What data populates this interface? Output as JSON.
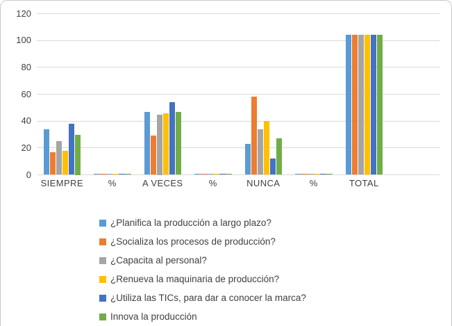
{
  "chart_data": {
    "type": "bar",
    "title": "",
    "xlabel": "",
    "ylabel": "",
    "categories": [
      "SIEMPRE",
      "%",
      "A VECES",
      "%",
      "NUNCA",
      "%",
      "TOTAL"
    ],
    "series": [
      {
        "name": "¿Planifica la producción a largo plazo?",
        "color": "#5B9BD5",
        "values": [
          34,
          1,
          47,
          1,
          23,
          1,
          104
        ]
      },
      {
        "name": "¿Socializa los procesos de producción?",
        "color": "#ED7D31",
        "values": [
          17,
          1,
          29,
          1,
          58,
          1,
          104
        ]
      },
      {
        "name": "¿Capacita al personal?",
        "color": "#A5A5A5",
        "values": [
          25,
          1,
          45,
          1,
          34,
          1,
          104
        ]
      },
      {
        "name": "¿Renueva la maquinaria de producción?",
        "color": "#FFC000",
        "values": [
          18,
          1,
          46,
          1,
          40,
          1,
          104
        ]
      },
      {
        "name": "¿Utiliza las TICs, para dar a conocer la marca?",
        "color": "#4472C4",
        "values": [
          38,
          1,
          54,
          1,
          12,
          1,
          104
        ]
      },
      {
        "name": "Innova la producción",
        "color": "#70AD47",
        "values": [
          30,
          1,
          47,
          1,
          27,
          1,
          104
        ]
      }
    ],
    "y_ticks": [
      0,
      20,
      40,
      60,
      80,
      100,
      120
    ],
    "ylim": [
      0,
      120
    ],
    "grid": true,
    "legend_position": "bottom"
  },
  "style_colors": {
    "gridline": "#d9d9d9",
    "axis_text": "#3f3f3f",
    "frame_border": "#c9c9c9",
    "background": "#ffffff"
  }
}
